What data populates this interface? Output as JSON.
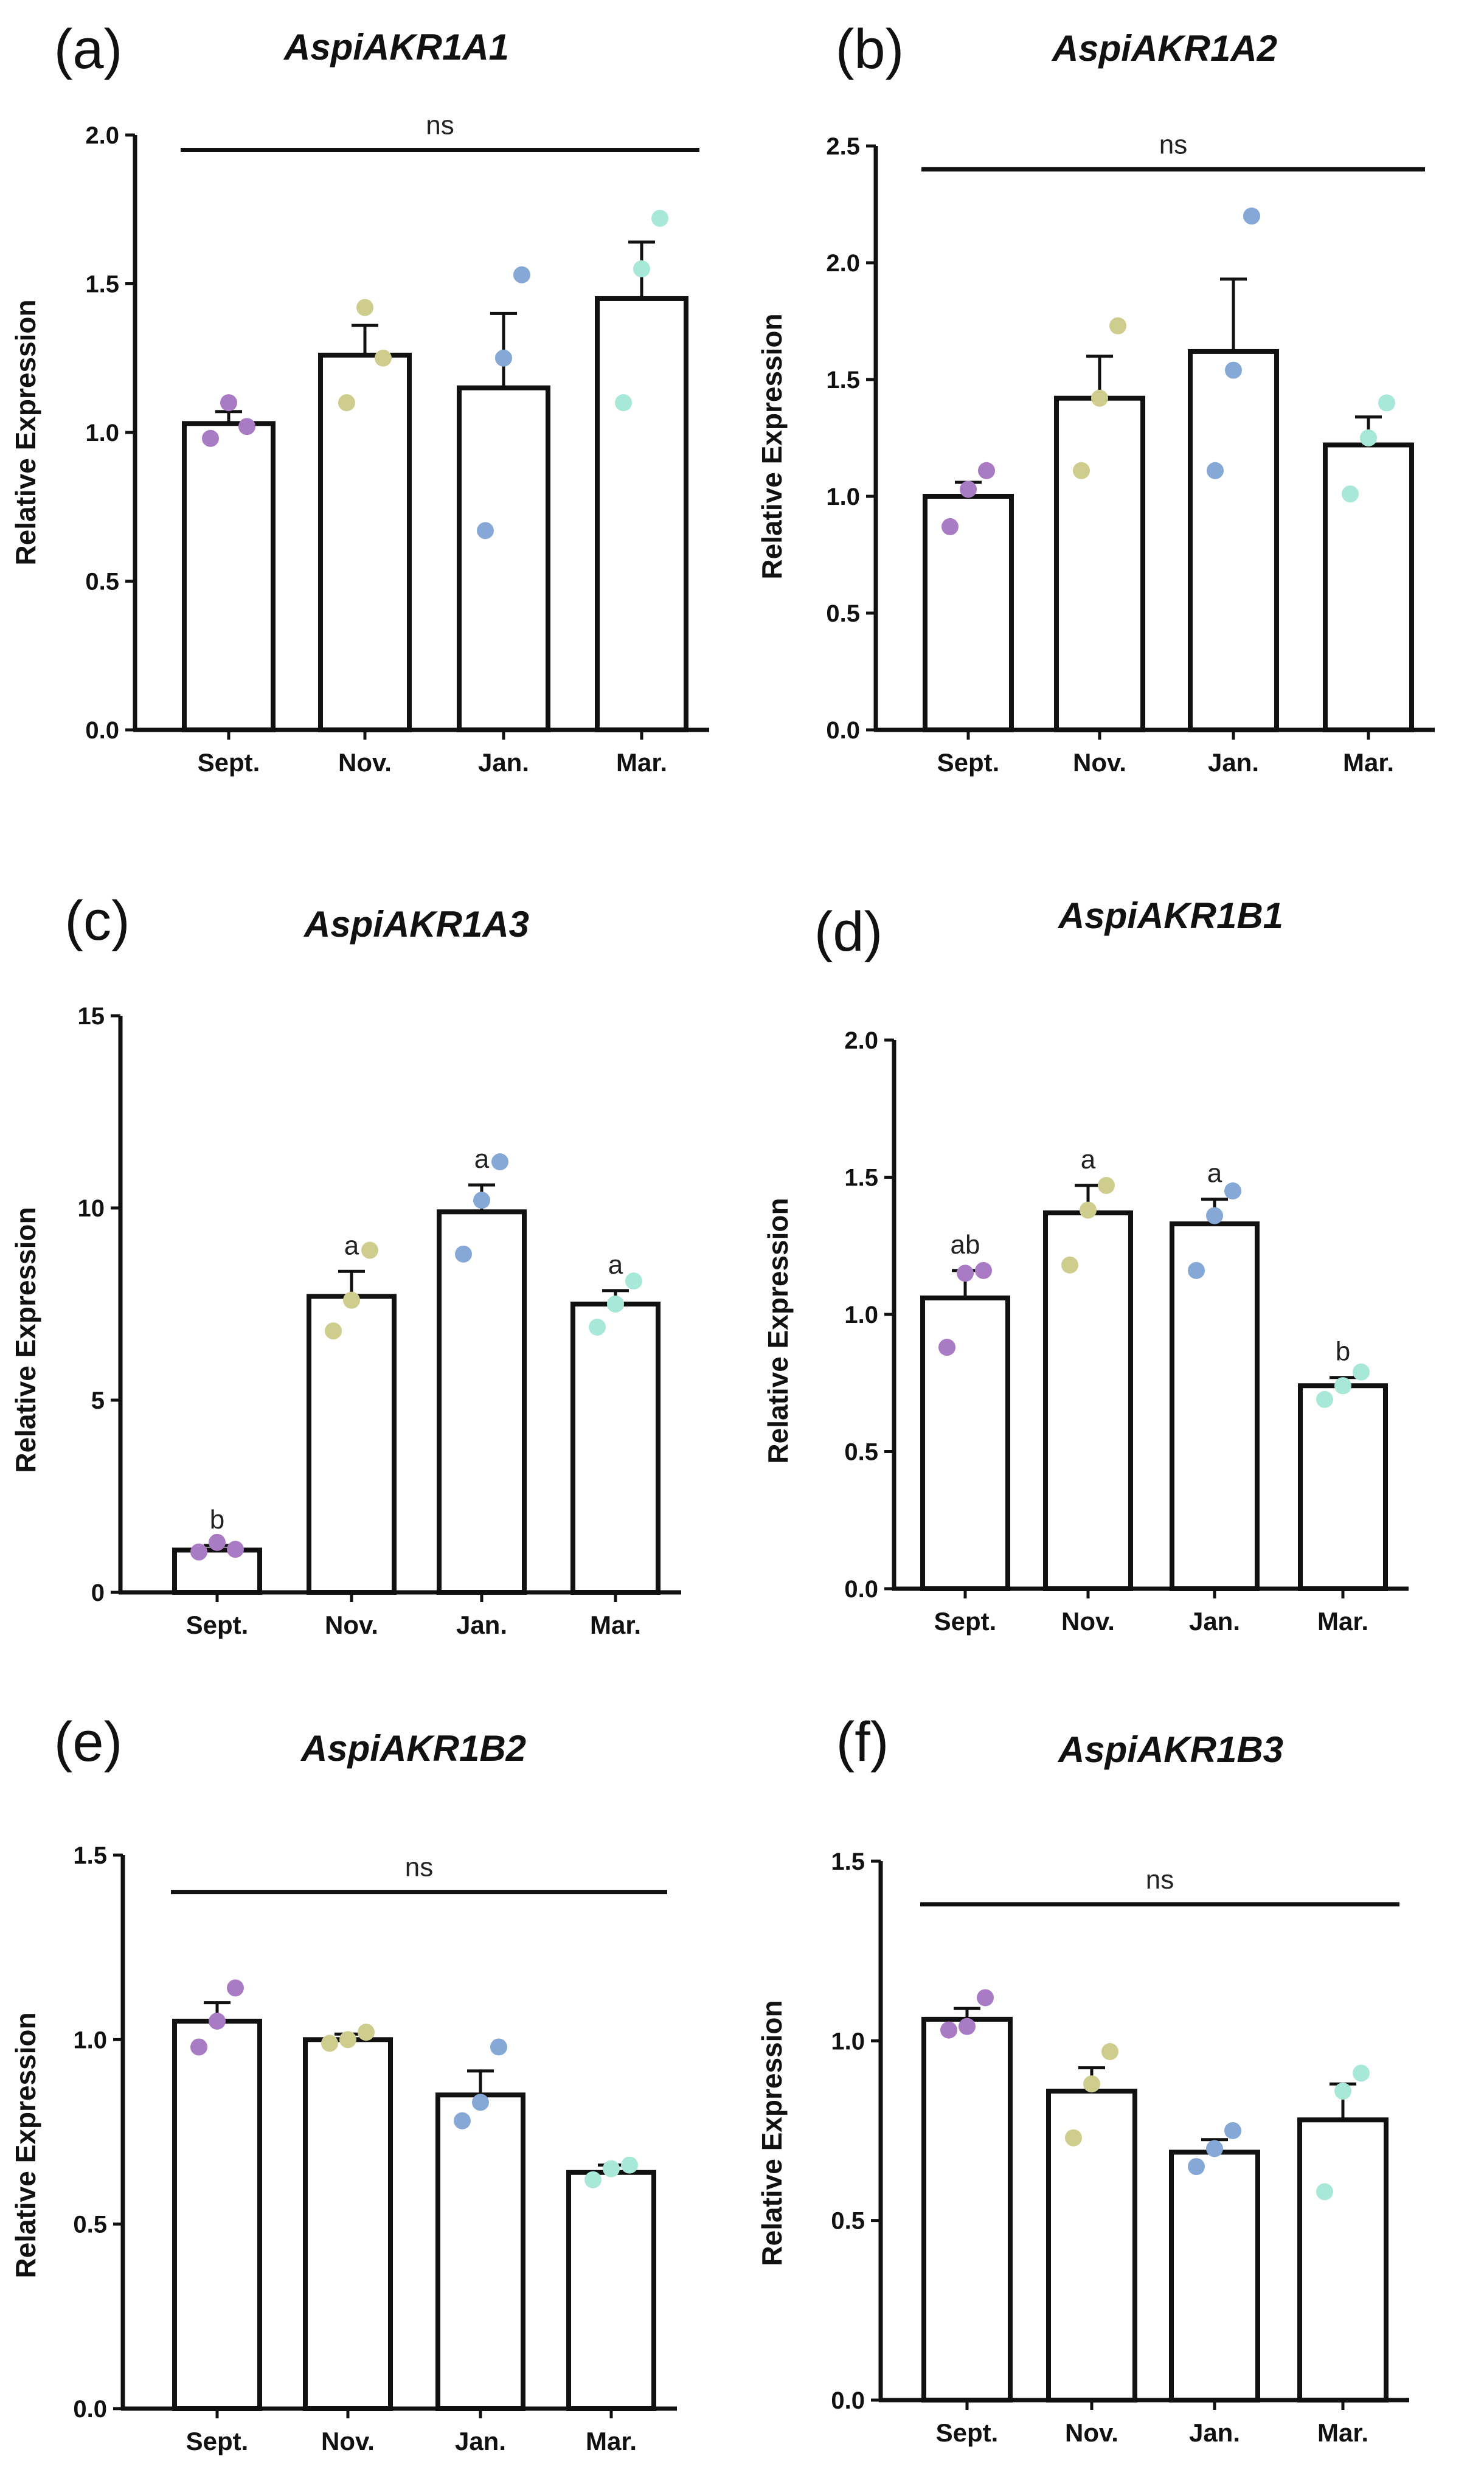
{
  "colors": {
    "Sept.": "#a97bc4",
    "Nov.": "#cfcd8e",
    "Jan.": "#86a8d6",
    "Mar.": "#a8e8d8",
    "axis": "#111111"
  },
  "chart_data": [
    {
      "panel": "(a)",
      "type": "bar",
      "title": "AspiAKR1A1",
      "categories": [
        "Sept.",
        "Nov.",
        "Jan.",
        "Mar."
      ],
      "values": [
        1.03,
        1.26,
        1.15,
        1.45
      ],
      "errors": [
        0.04,
        0.1,
        0.25,
        0.19
      ],
      "points": [
        [
          0.98,
          1.1,
          1.02
        ],
        [
          1.1,
          1.42,
          1.25
        ],
        [
          0.67,
          1.25,
          1.53
        ],
        [
          1.1,
          1.55,
          1.72
        ]
      ],
      "ylabel": "Relative Expression",
      "ylim": [
        0,
        2.0
      ],
      "yticks": [
        "0.0",
        "0.5",
        "1.0",
        "1.5",
        "2.0"
      ],
      "significance": {
        "type": "bracket",
        "text": "ns",
        "y": 1.95
      }
    },
    {
      "panel": "(b)",
      "type": "bar",
      "title": "AspiAKR1A2",
      "categories": [
        "Sept.",
        "Nov.",
        "Jan.",
        "Mar."
      ],
      "values": [
        1.0,
        1.42,
        1.62,
        1.22
      ],
      "errors": [
        0.06,
        0.18,
        0.31,
        0.12
      ],
      "points": [
        [
          0.87,
          1.03,
          1.11
        ],
        [
          1.11,
          1.42,
          1.73
        ],
        [
          1.11,
          1.54,
          2.2
        ],
        [
          1.01,
          1.25,
          1.4
        ]
      ],
      "ylabel": "Relative Expression",
      "ylim": [
        0,
        2.5
      ],
      "yticks": [
        "0.0",
        "0.5",
        "1.0",
        "1.5",
        "2.0",
        "2.5"
      ],
      "significance": {
        "type": "bracket",
        "text": "ns",
        "y": 2.4
      }
    },
    {
      "panel": "(c)",
      "type": "bar",
      "title": "AspiAKR1A3",
      "categories": [
        "Sept.",
        "Nov.",
        "Jan.",
        "Mar."
      ],
      "values": [
        1.1,
        7.7,
        9.9,
        7.5
      ],
      "errors": [
        0.12,
        0.65,
        0.7,
        0.35
      ],
      "points": [
        [
          1.05,
          1.3,
          1.12
        ],
        [
          6.8,
          7.6,
          8.9
        ],
        [
          8.8,
          10.2,
          11.2
        ],
        [
          6.9,
          7.5,
          8.1
        ]
      ],
      "ylabel": "Relative Expression",
      "ylim": [
        0,
        15
      ],
      "yticks": [
        "0",
        "5",
        "10",
        "15"
      ],
      "significance": {
        "type": "letters",
        "letters": [
          "b",
          "a",
          "a",
          "a"
        ]
      }
    },
    {
      "panel": "(d)",
      "type": "bar",
      "title": "AspiAKR1B1",
      "categories": [
        "Sept.",
        "Nov.",
        "Jan.",
        "Mar."
      ],
      "values": [
        1.06,
        1.37,
        1.33,
        0.74
      ],
      "errors": [
        0.1,
        0.1,
        0.09,
        0.03
      ],
      "points": [
        [
          0.88,
          1.15,
          1.16
        ],
        [
          1.18,
          1.38,
          1.47
        ],
        [
          1.16,
          1.36,
          1.45
        ],
        [
          0.69,
          0.74,
          0.79
        ]
      ],
      "ylabel": "Relative Expression",
      "ylim": [
        0,
        2.0
      ],
      "yticks": [
        "0.0",
        "0.5",
        "1.0",
        "1.5",
        "2.0"
      ],
      "significance": {
        "type": "letters",
        "letters": [
          "ab",
          "a",
          "a",
          "b"
        ]
      }
    },
    {
      "panel": "(e)",
      "type": "bar",
      "title": "AspiAKR1B2",
      "categories": [
        "Sept.",
        "Nov.",
        "Jan.",
        "Mar."
      ],
      "values": [
        1.05,
        1.0,
        0.85,
        0.64
      ],
      "errors": [
        0.05,
        0.015,
        0.065,
        0.02
      ],
      "points": [
        [
          0.98,
          1.05,
          1.14
        ],
        [
          0.99,
          1.0,
          1.02
        ],
        [
          0.78,
          0.83,
          0.98
        ],
        [
          0.62,
          0.65,
          0.66
        ]
      ],
      "ylabel": "Relative Expression",
      "ylim": [
        0,
        1.5
      ],
      "yticks": [
        "0.0",
        "0.5",
        "1.0",
        "1.5"
      ],
      "significance": {
        "type": "bracket",
        "text": "ns",
        "y": 1.4
      }
    },
    {
      "panel": "(f)",
      "type": "bar",
      "title": "AspiAKR1B3",
      "categories": [
        "Sept.",
        "Nov.",
        "Jan.",
        "Mar."
      ],
      "values": [
        1.06,
        0.86,
        0.69,
        0.78
      ],
      "errors": [
        0.03,
        0.065,
        0.035,
        0.1
      ],
      "points": [
        [
          1.03,
          1.04,
          1.12
        ],
        [
          0.73,
          0.88,
          0.97
        ],
        [
          0.65,
          0.7,
          0.75
        ],
        [
          0.58,
          0.86,
          0.91
        ]
      ],
      "ylabel": "Relative Expression",
      "ylim": [
        0,
        1.5
      ],
      "yticks": [
        "0.0",
        "0.5",
        "1.0",
        "1.5"
      ],
      "significance": {
        "type": "bracket",
        "text": "ns",
        "y": 1.38
      }
    }
  ]
}
